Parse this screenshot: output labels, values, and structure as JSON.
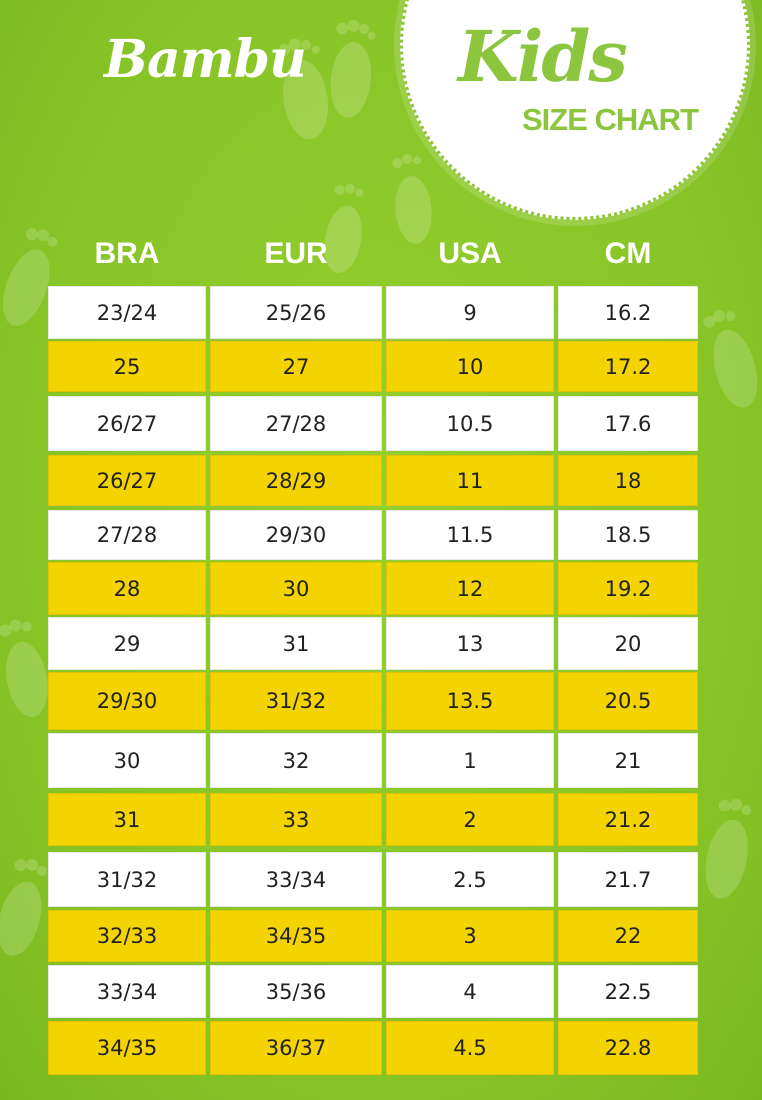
{
  "brand": {
    "logo_text": "Bambu"
  },
  "badge": {
    "title": "Kids",
    "subtitle": "SIZE CHART"
  },
  "table": {
    "headers": [
      "BRA",
      "EUR",
      "USA",
      "CM"
    ],
    "rows": [
      {
        "style": "white",
        "cells": [
          "23/24",
          "25/26",
          "9",
          "16.2"
        ]
      },
      {
        "style": "yellow",
        "cells": [
          "25",
          "27",
          "10",
          "17.2"
        ]
      },
      {
        "style": "white",
        "cells": [
          "26/27",
          "27/28",
          "10.5",
          "17.6"
        ]
      },
      {
        "style": "yellow",
        "cells": [
          "26/27",
          "28/29",
          "11",
          "18"
        ]
      },
      {
        "style": "white",
        "cells": [
          "27/28",
          "29/30",
          "11.5",
          "18.5"
        ]
      },
      {
        "style": "yellow",
        "cells": [
          "28",
          "30",
          "12",
          "19.2"
        ]
      },
      {
        "style": "white",
        "cells": [
          "29",
          "31",
          "13",
          "20"
        ]
      },
      {
        "style": "yellow",
        "cells": [
          "29/30",
          "31/32",
          "13.5",
          "20.5"
        ]
      },
      {
        "style": "white",
        "cells": [
          "30",
          "32",
          "1",
          "21"
        ]
      },
      {
        "style": "yellow",
        "cells": [
          "31",
          "33",
          "2",
          "21.2"
        ]
      },
      {
        "style": "white",
        "cells": [
          "31/32",
          "33/34",
          "2.5",
          "21.7"
        ]
      },
      {
        "style": "yellow",
        "cells": [
          "32/33",
          "34/35",
          "3",
          "22"
        ]
      },
      {
        "style": "white",
        "cells": [
          "33/34",
          "35/36",
          "4",
          "22.5"
        ]
      },
      {
        "style": "yellow",
        "cells": [
          "34/35",
          "36/37",
          "4.5",
          "22.8"
        ]
      }
    ]
  },
  "colors": {
    "background": "#8ecb2a",
    "row_yellow": "#f3d400",
    "row_white": "#ffffff",
    "badge_text": "#8cc63f"
  },
  "icons": [
    "footprint-icon"
  ]
}
